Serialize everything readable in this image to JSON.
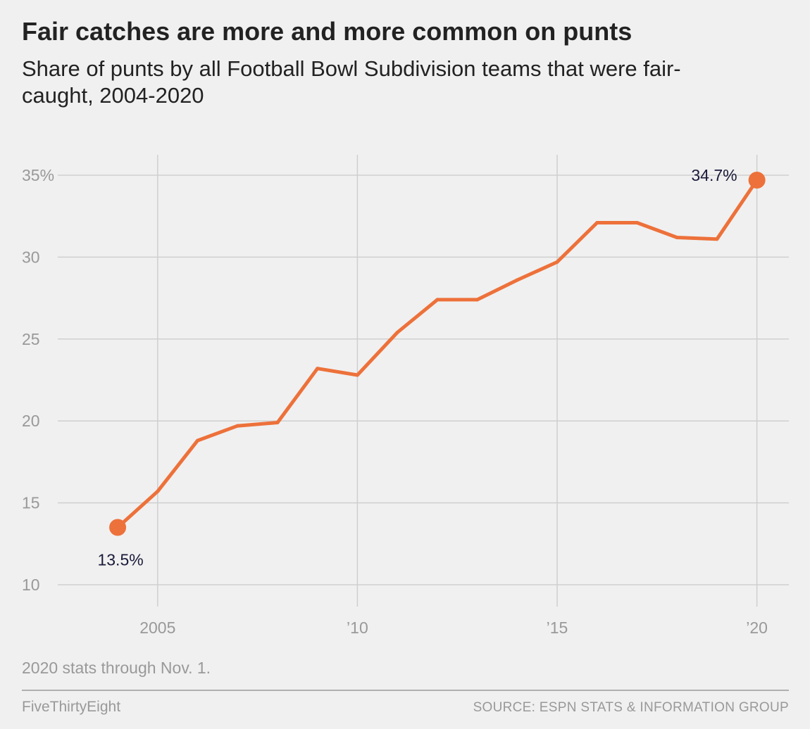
{
  "header": {
    "title": "Fair catches are more and more common on punts",
    "subtitle": "Share of punts by all Football Bowl Subdivision teams that were fair-caught, 2004-2020"
  },
  "footer": {
    "note": "2020 stats through Nov. 1.",
    "brand": "FiveThirtyEight",
    "source": "SOURCE: ESPN STATS & INFORMATION GROUP"
  },
  "chart_data": {
    "type": "line",
    "x": [
      2004,
      2005,
      2006,
      2007,
      2008,
      2009,
      2010,
      2011,
      2012,
      2013,
      2014,
      2015,
      2016,
      2017,
      2018,
      2019,
      2020
    ],
    "series": [
      {
        "values": [
          13.5,
          15.7,
          18.8,
          19.7,
          19.9,
          23.2,
          22.8,
          25.4,
          27.4,
          27.4,
          28.6,
          29.7,
          32.1,
          32.1,
          31.2,
          31.1,
          34.7
        ]
      }
    ],
    "xlim": [
      2002.5,
      2020.8
    ],
    "ylim": [
      10,
      35.5
    ],
    "x_ticks": [
      2005,
      2010,
      2015,
      2020
    ],
    "x_tick_labels": [
      "2005",
      "’10",
      "’15",
      "’20"
    ],
    "y_ticks": [
      10,
      15,
      20,
      25,
      30,
      35
    ],
    "y_tick_labels": [
      "10",
      "15",
      "20",
      "25",
      "30",
      "35%"
    ],
    "annotations": [
      {
        "x": 2004,
        "y": 13.5,
        "text": "13.5%"
      },
      {
        "x": 2020,
        "y": 34.7,
        "text": "34.7%"
      }
    ],
    "grid": true,
    "colors": {
      "line": "#ed713a",
      "grid": "#cfcfcf",
      "tick_text": "#999999",
      "annotation_text": "#1a1a3a"
    }
  }
}
